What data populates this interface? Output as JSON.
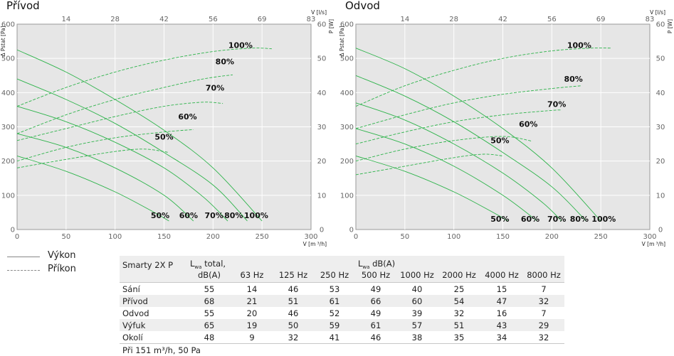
{
  "charts": [
    {
      "id": "left",
      "title": "Přívod"
    },
    {
      "id": "right",
      "title": "Odvod"
    }
  ],
  "axis_labels": {
    "y_left": "Δ Pstat [Pa]",
    "y_right": "P [W]",
    "x_bottom": "V [m ³/h]",
    "x_top": "V [l/s]"
  },
  "chart_data": [
    {
      "type": "line",
      "title": "Přívod",
      "xlabel": "V [m ³/h]",
      "ylabel": "Δ Pstat [Pa]",
      "y2label": "P [W]",
      "x2label": "V [l/s]",
      "xlim": [
        0,
        300
      ],
      "ylim": [
        0,
        600
      ],
      "y2lim": [
        0,
        60
      ],
      "x_ticks": [
        0,
        50,
        100,
        150,
        200,
        250,
        300
      ],
      "y_ticks": [
        0,
        100,
        200,
        300,
        400,
        500,
        600
      ],
      "y2_ticks": [
        0,
        10,
        20,
        30,
        40,
        50,
        60
      ],
      "x2_ticks": [
        {
          "label": "14",
          "x": 50
        },
        {
          "label": "28",
          "x": 100
        },
        {
          "label": "42",
          "x": 150
        },
        {
          "label": "56",
          "x": 200
        },
        {
          "label": "69",
          "x": 250
        },
        {
          "label": "83",
          "x": 300
        }
      ],
      "grid": true,
      "series": [
        {
          "name": "100%",
          "kind": "performance",
          "x": [
            0,
            50,
            100,
            150,
            200,
            250
          ],
          "y": [
            525,
            460,
            380,
            290,
            180,
            25
          ]
        },
        {
          "name": "80%",
          "kind": "performance",
          "x": [
            0,
            50,
            100,
            150,
            200,
            235
          ],
          "y": [
            440,
            380,
            310,
            225,
            130,
            25
          ]
        },
        {
          "name": "70%",
          "kind": "performance",
          "x": [
            0,
            50,
            100,
            150,
            190,
            215
          ],
          "y": [
            360,
            315,
            255,
            180,
            95,
            25
          ]
        },
        {
          "name": "60%",
          "kind": "performance",
          "x": [
            0,
            50,
            100,
            150,
            180
          ],
          "y": [
            280,
            240,
            180,
            100,
            25
          ]
        },
        {
          "name": "50%",
          "kind": "performance",
          "x": [
            0,
            50,
            100,
            140,
            155
          ],
          "y": [
            215,
            170,
            110,
            50,
            25
          ]
        },
        {
          "name": "100%",
          "kind": "power",
          "x": [
            0,
            50,
            100,
            150,
            200,
            240,
            260
          ],
          "y": [
            36,
            41.5,
            46,
            49.5,
            52,
            53,
            52.8
          ]
        },
        {
          "name": "80%",
          "kind": "power",
          "x": [
            0,
            50,
            100,
            150,
            190,
            220
          ],
          "y": [
            28,
            33.5,
            38,
            41.5,
            44,
            45.2
          ]
        },
        {
          "name": "70%",
          "kind": "power",
          "x": [
            0,
            50,
            100,
            150,
            190,
            210
          ],
          "y": [
            26,
            29.5,
            33,
            36,
            37.2,
            36.8
          ]
        },
        {
          "name": "60%",
          "kind": "power",
          "x": [
            0,
            50,
            100,
            150,
            180
          ],
          "y": [
            20,
            24,
            26.8,
            28.5,
            29.2
          ]
        },
        {
          "name": "50%",
          "kind": "power",
          "x": [
            0,
            50,
            100,
            130,
            155
          ],
          "y": [
            18,
            20.5,
            22.8,
            23.5,
            22.5
          ]
        }
      ],
      "annotations": [
        {
          "text": "100%",
          "x": 228,
          "y": 530
        },
        {
          "text": "80%",
          "x": 212,
          "y": 483
        },
        {
          "text": "70%",
          "x": 202,
          "y": 406
        },
        {
          "text": "60%",
          "x": 174,
          "y": 322
        },
        {
          "text": "50%",
          "x": 150,
          "y": 263
        },
        {
          "text": "50%",
          "x": 146,
          "y": 33
        },
        {
          "text": "60%",
          "x": 175,
          "y": 33
        },
        {
          "text": "70%",
          "x": 201,
          "y": 33
        },
        {
          "text": "80%",
          "x": 221,
          "y": 33
        },
        {
          "text": "100%",
          "x": 244,
          "y": 33
        }
      ]
    },
    {
      "type": "line",
      "title": "Odvod",
      "xlabel": "V [m ³/h]",
      "ylabel": "Δ Pstat [Pa]",
      "y2label": "P [W]",
      "x2label": "V [l/s]",
      "xlim": [
        0,
        300
      ],
      "ylim": [
        0,
        600
      ],
      "y2lim": [
        0,
        60
      ],
      "x_ticks": [
        0,
        50,
        100,
        150,
        200,
        250,
        300
      ],
      "y_ticks": [
        0,
        100,
        200,
        300,
        400,
        500,
        600
      ],
      "y2_ticks": [
        0,
        10,
        20,
        30,
        40,
        50,
        60
      ],
      "x2_ticks": [
        {
          "label": "14",
          "x": 50
        },
        {
          "label": "28",
          "x": 100
        },
        {
          "label": "42",
          "x": 150
        },
        {
          "label": "56",
          "x": 200
        },
        {
          "label": "69",
          "x": 250
        },
        {
          "label": "83",
          "x": 300
        }
      ],
      "grid": true,
      "series": [
        {
          "name": "100%",
          "kind": "performance",
          "x": [
            0,
            50,
            100,
            150,
            200,
            250
          ],
          "y": [
            530,
            470,
            390,
            295,
            180,
            25
          ]
        },
        {
          "name": "80%",
          "kind": "performance",
          "x": [
            0,
            50,
            100,
            150,
            200,
            235
          ],
          "y": [
            450,
            390,
            315,
            225,
            125,
            25
          ]
        },
        {
          "name": "70%",
          "kind": "performance",
          "x": [
            0,
            50,
            100,
            150,
            190,
            210
          ],
          "y": [
            370,
            320,
            250,
            165,
            80,
            25
          ]
        },
        {
          "name": "60%",
          "kind": "performance",
          "x": [
            0,
            50,
            100,
            150,
            185
          ],
          "y": [
            295,
            250,
            185,
            100,
            25
          ]
        },
        {
          "name": "50%",
          "kind": "performance",
          "x": [
            0,
            50,
            100,
            140,
            155
          ],
          "y": [
            215,
            170,
            110,
            50,
            25
          ]
        },
        {
          "name": "100%",
          "kind": "power",
          "x": [
            0,
            50,
            100,
            150,
            200,
            240,
            260
          ],
          "y": [
            36,
            42,
            46.5,
            50,
            52.2,
            53,
            53
          ]
        },
        {
          "name": "80%",
          "kind": "power",
          "x": [
            0,
            50,
            100,
            150,
            200,
            230
          ],
          "y": [
            29.5,
            33.5,
            37,
            39.5,
            41.2,
            42
          ]
        },
        {
          "name": "70%",
          "kind": "power",
          "x": [
            0,
            50,
            100,
            150,
            200,
            210
          ],
          "y": [
            25,
            28.5,
            31.5,
            33.5,
            34.8,
            34.9
          ]
        },
        {
          "name": "60%",
          "kind": "power",
          "x": [
            0,
            50,
            100,
            150,
            180
          ],
          "y": [
            20,
            23.5,
            26,
            27.2,
            25.8
          ]
        },
        {
          "name": "50%",
          "kind": "power",
          "x": [
            0,
            50,
            100,
            130,
            150
          ],
          "y": [
            16,
            18.5,
            21,
            22,
            21.5
          ]
        }
      ],
      "annotations": [
        {
          "text": "100%",
          "x": 228,
          "y": 530
        },
        {
          "text": "80%",
          "x": 222,
          "y": 432
        },
        {
          "text": "70%",
          "x": 205,
          "y": 358
        },
        {
          "text": "60%",
          "x": 176,
          "y": 300
        },
        {
          "text": "50%",
          "x": 147,
          "y": 252
        },
        {
          "text": "50%",
          "x": 147,
          "y": 23
        },
        {
          "text": "60%",
          "x": 178,
          "y": 23
        },
        {
          "text": "70%",
          "x": 205,
          "y": 23
        },
        {
          "text": "80%",
          "x": 228,
          "y": 23
        },
        {
          "text": "100%",
          "x": 253,
          "y": 23
        }
      ]
    }
  ],
  "legend": [
    {
      "label": "Výkon",
      "style": "solid"
    },
    {
      "label": "Příkon",
      "style": "dashed"
    }
  ],
  "noise_table": {
    "model": "Smarty 2X P",
    "lw_prefix": "L",
    "lw_sub": "wa",
    "total_suffix": " total,",
    "total_unit": "dB(A)",
    "band_suffix": " dB(A)",
    "bands": [
      "63 Hz",
      "125 Hz",
      "250 Hz",
      "500 Hz",
      "1000 Hz",
      "2000 Hz",
      "4000 Hz",
      "8000 Hz"
    ],
    "rows": [
      {
        "label": "Sání",
        "values": [
          "55",
          "14",
          "46",
          "53",
          "49",
          "40",
          "25",
          "15",
          "7"
        ]
      },
      {
        "label": "Přívod",
        "values": [
          "68",
          "21",
          "51",
          "61",
          "66",
          "60",
          "54",
          "47",
          "32"
        ]
      },
      {
        "label": "Odvod",
        "values": [
          "55",
          "20",
          "46",
          "52",
          "49",
          "39",
          "32",
          "16",
          "7"
        ]
      },
      {
        "label": "Výfuk",
        "values": [
          "65",
          "19",
          "50",
          "59",
          "61",
          "57",
          "51",
          "43",
          "29"
        ]
      },
      {
        "label": "Okolí",
        "values": [
          "48",
          "9",
          "32",
          "41",
          "46",
          "38",
          "35",
          "34",
          "32"
        ]
      }
    ],
    "note": "Při 151 m³/h, 50 Pa"
  },
  "colors": {
    "plot_bg": "#e6e6e6",
    "grid": "#ffffff",
    "curve": "#2db34a",
    "axis": "#9a9a9a",
    "text": "#222222"
  }
}
